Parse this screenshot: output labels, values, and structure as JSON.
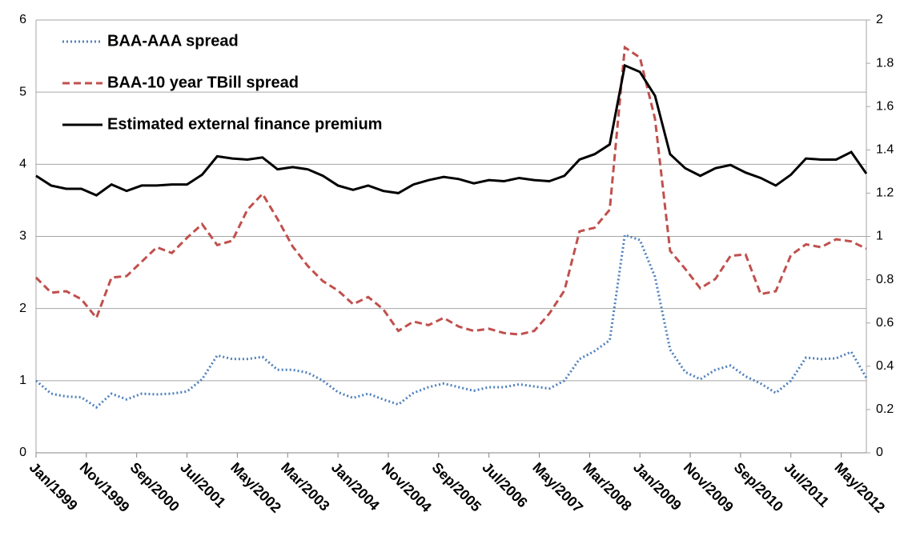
{
  "chart_data": {
    "type": "line",
    "x": [
      0,
      3,
      6,
      9,
      12,
      15,
      18,
      21,
      24,
      27,
      30,
      33,
      36,
      39,
      42,
      45,
      48,
      51,
      54,
      57,
      60,
      63,
      66,
      69,
      72,
      75,
      78,
      81,
      84,
      87,
      90,
      93,
      96,
      99,
      102,
      105,
      108,
      111,
      114,
      117,
      120,
      123,
      126,
      129,
      132,
      135,
      138,
      141,
      144,
      147,
      150,
      153,
      156,
      159,
      162,
      165
    ],
    "xlim": [
      0,
      165
    ],
    "xticks": [
      {
        "value": 0,
        "label": "Jan/1999"
      },
      {
        "value": 10,
        "label": "Nov/1999"
      },
      {
        "value": 20,
        "label": "Sep/2000"
      },
      {
        "value": 30,
        "label": "Jul/2001"
      },
      {
        "value": 40,
        "label": "May/2002"
      },
      {
        "value": 50,
        "label": "Mar/2003"
      },
      {
        "value": 60,
        "label": "Jan/2004"
      },
      {
        "value": 70,
        "label": "Nov/2004"
      },
      {
        "value": 80,
        "label": "Sep/2005"
      },
      {
        "value": 90,
        "label": "Jul/2006"
      },
      {
        "value": 100,
        "label": "May/2007"
      },
      {
        "value": 110,
        "label": "Mar/2008"
      },
      {
        "value": 120,
        "label": "Jan/2009"
      },
      {
        "value": 130,
        "label": "Nov/2009"
      },
      {
        "value": 140,
        "label": "Sep/2010"
      },
      {
        "value": 150,
        "label": "Jul/2011"
      },
      {
        "value": 160,
        "label": "May/2012"
      }
    ],
    "ylim": [
      0,
      6
    ],
    "yticks": [
      0,
      1,
      2,
      3,
      4,
      5,
      6
    ],
    "y2lim": [
      0,
      2
    ],
    "y2ticks": [
      0,
      0.2,
      0.4,
      0.6,
      0.8,
      1,
      1.2,
      1.4,
      1.6,
      1.8,
      2
    ],
    "grid": true,
    "legend": "upper left",
    "series": [
      {
        "name": "BAA-AAA spread",
        "color": "#4f81bd",
        "style": "dotted",
        "values": [
          1.0,
          0.82,
          0.78,
          0.77,
          0.63,
          0.82,
          0.74,
          0.82,
          0.81,
          0.82,
          0.85,
          1.02,
          1.35,
          1.3,
          1.3,
          1.33,
          1.15,
          1.15,
          1.11,
          1.0,
          0.84,
          0.76,
          0.82,
          0.74,
          0.67,
          0.83,
          0.91,
          0.96,
          0.91,
          0.86,
          0.91,
          0.91,
          0.95,
          0.92,
          0.89,
          1.0,
          1.3,
          1.41,
          1.56,
          3.02,
          2.95,
          2.44,
          1.43,
          1.12,
          1.02,
          1.15,
          1.21,
          1.06,
          0.96,
          0.83,
          1.0,
          1.32,
          1.3,
          1.31,
          1.4,
          1.04
        ]
      },
      {
        "name": "BAA-10 year TBill spread",
        "color": "#c0504d",
        "style": "dashed",
        "values": [
          2.43,
          2.22,
          2.24,
          2.13,
          1.87,
          2.43,
          2.45,
          2.65,
          2.85,
          2.77,
          2.98,
          3.17,
          2.88,
          2.94,
          3.37,
          3.59,
          3.24,
          2.86,
          2.59,
          2.38,
          2.25,
          2.06,
          2.16,
          1.99,
          1.69,
          1.82,
          1.77,
          1.87,
          1.75,
          1.69,
          1.72,
          1.66,
          1.64,
          1.69,
          1.93,
          2.25,
          3.07,
          3.12,
          3.37,
          5.62,
          5.48,
          4.63,
          2.8,
          2.55,
          2.28,
          2.41,
          2.73,
          2.75,
          2.2,
          2.24,
          2.74,
          2.89,
          2.85,
          2.96,
          2.93,
          2.83
        ]
      },
      {
        "name": "Estimated external finance premium",
        "color": "#000000",
        "style": "solid",
        "axis": "y2",
        "values": [
          1.28,
          1.235,
          1.22,
          1.22,
          1.19,
          1.24,
          1.21,
          1.235,
          1.235,
          1.24,
          1.24,
          1.285,
          1.37,
          1.36,
          1.355,
          1.365,
          1.31,
          1.32,
          1.31,
          1.28,
          1.235,
          1.215,
          1.235,
          1.21,
          1.2,
          1.24,
          1.26,
          1.275,
          1.265,
          1.245,
          1.26,
          1.255,
          1.27,
          1.26,
          1.255,
          1.28,
          1.355,
          1.38,
          1.425,
          1.79,
          1.76,
          1.65,
          1.38,
          1.315,
          1.28,
          1.315,
          1.33,
          1.295,
          1.27,
          1.235,
          1.285,
          1.36,
          1.355,
          1.355,
          1.39,
          1.29
        ]
      }
    ]
  }
}
